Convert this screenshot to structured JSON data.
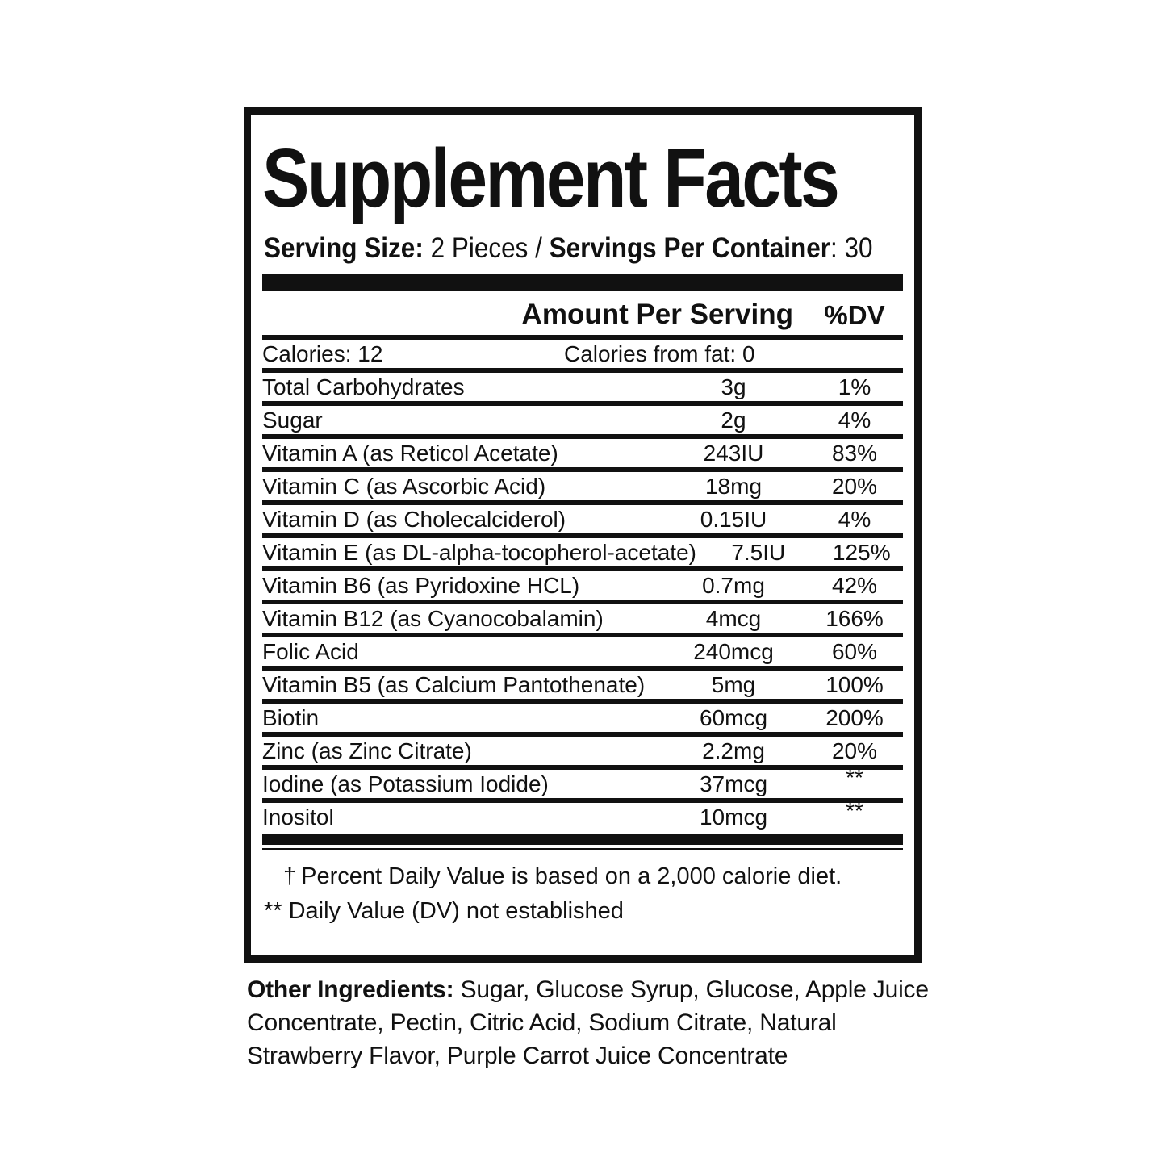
{
  "label": {
    "title": "Supplement Facts",
    "serving_line": {
      "size_label": "Serving Size:",
      "size_value": " 2 Pieces / ",
      "container_label": "Servings Per Container",
      "container_value": ": 30"
    },
    "columns": {
      "amount_header": "Amount Per Serving",
      "dv_header": "%DV"
    },
    "calories_row": {
      "left": "Calories: 12",
      "center": "Calories from fat: 0"
    },
    "nutrients": [
      {
        "name": "Total Carbohydrates",
        "amount": "3g",
        "dv": "1%"
      },
      {
        "name": "Sugar",
        "amount": "2g",
        "dv": "4%"
      },
      {
        "name": "Vitamin A (as Reticol Acetate)",
        "amount": "243IU",
        "dv": "83%"
      },
      {
        "name": "Vitamin C (as Ascorbic Acid)",
        "amount": "18mg",
        "dv": "20%"
      },
      {
        "name": "Vitamin D (as Cholecalciderol)",
        "amount": "0.15IU",
        "dv": "4%"
      },
      {
        "name": "Vitamin E (as DL-alpha-tocopherol-acetate)",
        "amount": "7.5IU",
        "dv": "125%"
      },
      {
        "name": "Vitamin B6 (as Pyridoxine HCL)",
        "amount": "0.7mg",
        "dv": "42%"
      },
      {
        "name": "Vitamin B12 (as Cyanocobalamin)",
        "amount": "4mcg",
        "dv": "166%"
      },
      {
        "name": "Folic Acid",
        "amount": "240mcg",
        "dv": "60%"
      },
      {
        "name": "Vitamin B5 (as Calcium Pantothenate)",
        "amount": "5mg",
        "dv": "100%"
      },
      {
        "name": "Biotin",
        "amount": "60mcg",
        "dv": "200%"
      },
      {
        "name": "Zinc (as Zinc Citrate)",
        "amount": "2.2mg",
        "dv": "20%"
      },
      {
        "name": "Iodine (as Potassium Iodide)",
        "amount": "37mcg",
        "dv": "**"
      },
      {
        "name": "Inositol",
        "amount": "10mcg",
        "dv": "**"
      }
    ],
    "footnotes": {
      "daily_value": {
        "symbol": "†",
        "text": "Percent Daily Value is based on a 2,000 calorie diet."
      },
      "not_established": {
        "symbol": "**",
        "text": "Daily Value (DV) not established"
      }
    },
    "other_ingredients": {
      "label": "Other Ingredients:",
      "text": " Sugar, Glucose Syrup, Glucose, Apple Juice Concentrate, Pectin, Citric Acid, Sodium Citrate, Natural Strawberry Flavor, Purple Carrot Juice Concentrate"
    },
    "colors": {
      "ink": "#111111",
      "background": "#ffffff"
    }
  }
}
